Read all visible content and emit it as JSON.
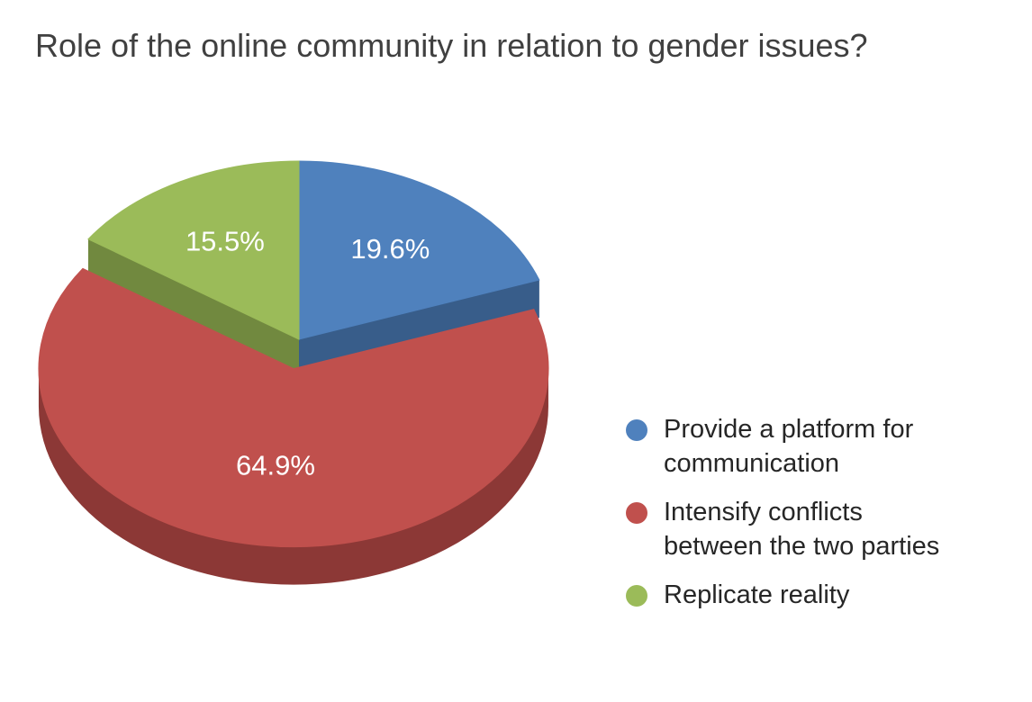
{
  "chart_data": {
    "type": "pie",
    "title": "Role of the online community in relation to gender issues?",
    "series": [
      {
        "slices": [
          {
            "label": "Provide a platform for communication",
            "value": 19.6,
            "value_label": "19.6%",
            "color": "#4f81bd",
            "side_color": "#385d8a"
          },
          {
            "label": "Intensify conflicts between the two parties",
            "value": 64.9,
            "value_label": "64.9%",
            "color": "#c0504d",
            "side_color": "#8c3836"
          },
          {
            "label": "Replicate reality",
            "value": 15.5,
            "value_label": "15.5%",
            "color": "#9bbb59",
            "side_color": "#71893f"
          }
        ]
      }
    ],
    "legend_position": "right",
    "exploded_slice": "Intensify conflicts between the two parties",
    "style": "3d"
  }
}
